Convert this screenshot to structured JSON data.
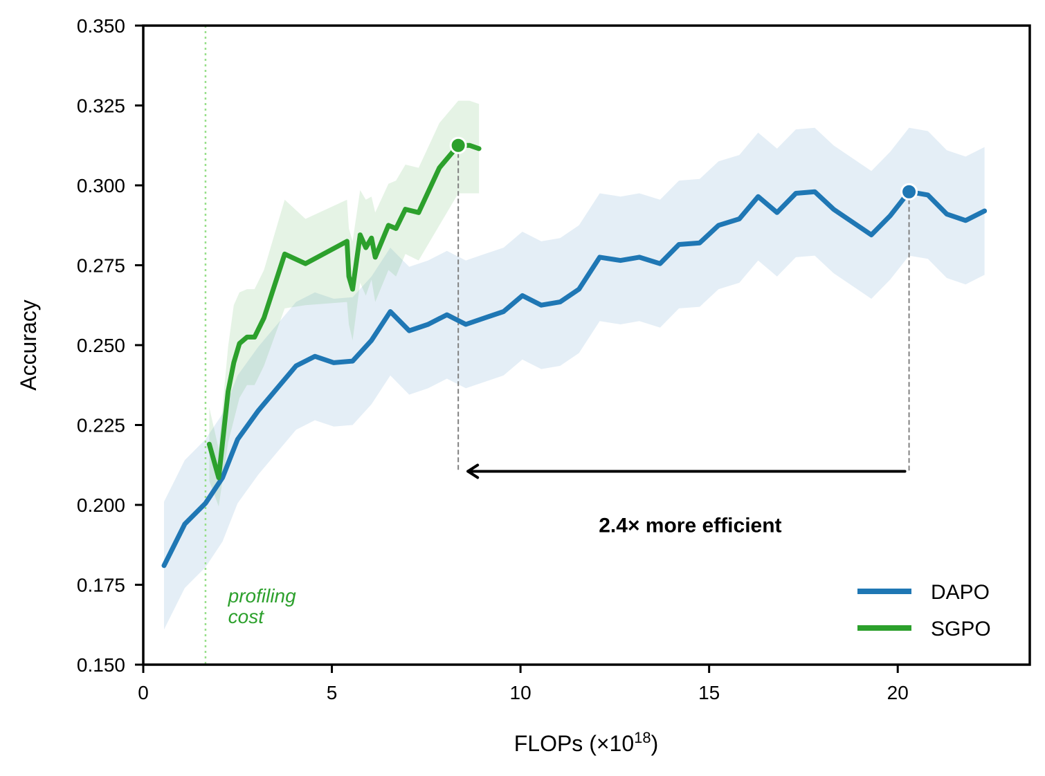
{
  "chart_data": {
    "type": "line",
    "xlabel": "FLOPs (×10",
    "xlabel_exp": "18",
    "xlabel_close": ")",
    "ylabel": "Accuracy",
    "xlim": [
      0,
      23.5
    ],
    "ylim": [
      0.15,
      0.35
    ],
    "xticks": [
      0,
      5,
      10,
      15,
      20
    ],
    "yticks": [
      0.15,
      0.175,
      0.2,
      0.225,
      0.25,
      0.275,
      0.3,
      0.325,
      0.35
    ],
    "ytick_labels": [
      "0.150",
      "0.175",
      "0.200",
      "0.225",
      "0.250",
      "0.275",
      "0.300",
      "0.325",
      "0.350"
    ],
    "grid": false,
    "legend_position": "bottom-right",
    "series": [
      {
        "name": "DAPO",
        "color": "#1f77b4",
        "band_color": "#1f77b4",
        "x": [
          0.55,
          1.1,
          1.65,
          2.1,
          2.5,
          3.05,
          3.55,
          4.05,
          4.55,
          5.05,
          5.55,
          6.05,
          6.55,
          7.05,
          7.55,
          8.05,
          8.55,
          9.05,
          9.55,
          10.05,
          10.55,
          11.05,
          11.55,
          12.1,
          12.65,
          13.15,
          13.7,
          14.2,
          14.75,
          15.25,
          15.8,
          16.3,
          16.8,
          17.3,
          17.8,
          18.3,
          18.8,
          19.3,
          19.8,
          20.3,
          20.8,
          21.3,
          21.8,
          22.3
        ],
        "y": [
          0.181,
          0.194,
          0.2005,
          0.2085,
          0.2205,
          0.2295,
          0.2365,
          0.2435,
          0.2465,
          0.2445,
          0.245,
          0.2515,
          0.2605,
          0.2545,
          0.2565,
          0.2595,
          0.2565,
          0.2585,
          0.2605,
          0.2655,
          0.2625,
          0.2635,
          0.2675,
          0.2775,
          0.2765,
          0.2775,
          0.2755,
          0.2815,
          0.282,
          0.2875,
          0.2895,
          0.2965,
          0.2915,
          0.2975,
          0.298,
          0.2925,
          0.2885,
          0.2845,
          0.2905,
          0.298,
          0.297,
          0.291,
          0.289,
          0.292
        ],
        "lower": [
          0.161,
          0.174,
          0.1805,
          0.1885,
          0.2005,
          0.2095,
          0.2165,
          0.2235,
          0.2265,
          0.2245,
          0.225,
          0.2315,
          0.2405,
          0.2345,
          0.2365,
          0.2395,
          0.2365,
          0.2385,
          0.2405,
          0.2455,
          0.2425,
          0.2435,
          0.2475,
          0.2575,
          0.2565,
          0.2575,
          0.2555,
          0.2615,
          0.262,
          0.2675,
          0.2695,
          0.2765,
          0.2715,
          0.2775,
          0.278,
          0.2725,
          0.2685,
          0.2645,
          0.2705,
          0.278,
          0.277,
          0.271,
          0.269,
          0.272
        ],
        "upper": [
          0.201,
          0.214,
          0.2205,
          0.2285,
          0.2405,
          0.2495,
          0.2565,
          0.2635,
          0.2665,
          0.2645,
          0.265,
          0.2715,
          0.2805,
          0.2745,
          0.2765,
          0.2795,
          0.2765,
          0.2785,
          0.2805,
          0.2855,
          0.2825,
          0.2835,
          0.2875,
          0.2975,
          0.2965,
          0.2975,
          0.2955,
          0.3015,
          0.302,
          0.3075,
          0.3095,
          0.3165,
          0.3115,
          0.3175,
          0.318,
          0.3125,
          0.3085,
          0.3045,
          0.3105,
          0.318,
          0.317,
          0.311,
          0.309,
          0.312
        ],
        "highlight": {
          "x": 20.3,
          "y": 0.298
        }
      },
      {
        "name": "SGPO",
        "color": "#2ca02c",
        "band_color": "#2ca02c",
        "x": [
          1.75,
          2.0,
          2.25,
          2.4,
          2.55,
          2.75,
          2.95,
          3.2,
          3.75,
          4.3,
          5.4,
          5.45,
          5.55,
          5.75,
          5.9,
          6.05,
          6.15,
          6.5,
          6.7,
          6.95,
          7.3,
          7.85,
          8.35,
          8.65,
          8.9
        ],
        "y": [
          0.219,
          0.2085,
          0.2355,
          0.2445,
          0.2505,
          0.2525,
          0.2525,
          0.2585,
          0.2785,
          0.2755,
          0.2825,
          0.2715,
          0.2675,
          0.2845,
          0.2805,
          0.2835,
          0.2775,
          0.2875,
          0.2865,
          0.2925,
          0.2915,
          0.3055,
          0.3125,
          0.3125,
          0.3115
        ],
        "lower": [
          0.2075,
          0.1995,
          0.2195,
          0.2265,
          0.2335,
          0.2375,
          0.2375,
          0.2435,
          0.2615,
          0.2625,
          0.2635,
          0.2565,
          0.2515,
          0.2695,
          0.2655,
          0.2705,
          0.2635,
          0.2735,
          0.2715,
          0.2785,
          0.2765,
          0.2875,
          0.2975,
          0.2975,
          0.2975
        ],
        "upper": [
          0.2305,
          0.2175,
          0.2495,
          0.2625,
          0.2665,
          0.2675,
          0.2675,
          0.2735,
          0.2955,
          0.2895,
          0.2955,
          0.2865,
          0.2825,
          0.2985,
          0.2955,
          0.2965,
          0.2915,
          0.3005,
          0.3015,
          0.3065,
          0.3055,
          0.3195,
          0.3265,
          0.3265,
          0.3255
        ],
        "highlight": {
          "x": 8.35,
          "y": 0.3125
        }
      }
    ],
    "annotations": {
      "efficiency_text": "2.4× more efficient",
      "arrow_from_x": 20.3,
      "arrow_to_x": 8.35,
      "arrow_y": 0.2105,
      "text_x": 14.5,
      "text_y": 0.1915,
      "profiling_line_x": 1.65,
      "profiling_line_color": "#98df8a",
      "profiling_text_line1": "profiling",
      "profiling_text_line2": "cost",
      "profiling_text_x": 2.25,
      "profiling_text_y": 0.1695
    }
  }
}
